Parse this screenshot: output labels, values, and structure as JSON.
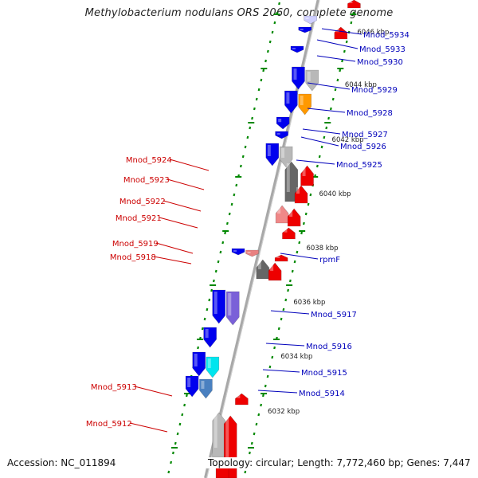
{
  "title": "Methylobacterium nodulans ORS 2060, complete genome",
  "footer": {
    "accession_text": "Accession: NC_011894",
    "topology_text": "Topology: circular; Length: 7,772,460 bp; Genes: 7,447"
  },
  "colors": {
    "forward_strand": "#ee0000",
    "reverse_strand": "#0000ee",
    "backbone": "#a8a8a8",
    "tick": "#008800",
    "forward_label": "#cc0000",
    "reverse_label": "#0000bb"
  },
  "scale_labels": [
    "6046 kbp",
    "6044 kbp",
    "6042 kbp",
    "6040 kbp",
    "6038 kbp",
    "6036 kbp",
    "6034 kbp",
    "6032 kbp"
  ],
  "genes": [
    {
      "name": "Mnod_5934",
      "strand": "reverse"
    },
    {
      "name": "Mnod_5933",
      "strand": "reverse"
    },
    {
      "name": "Mnod_5930",
      "strand": "reverse"
    },
    {
      "name": "Mnod_5929",
      "strand": "reverse"
    },
    {
      "name": "Mnod_5928",
      "strand": "reverse"
    },
    {
      "name": "Mnod_5927",
      "strand": "reverse"
    },
    {
      "name": "Mnod_5926",
      "strand": "reverse"
    },
    {
      "name": "Mnod_5925",
      "strand": "reverse"
    },
    {
      "name": "rpmF",
      "strand": "reverse"
    },
    {
      "name": "Mnod_5917",
      "strand": "reverse"
    },
    {
      "name": "Mnod_5916",
      "strand": "reverse"
    },
    {
      "name": "Mnod_5915",
      "strand": "reverse"
    },
    {
      "name": "Mnod_5914",
      "strand": "reverse"
    },
    {
      "name": "Mnod_5924",
      "strand": "forward"
    },
    {
      "name": "Mnod_5923",
      "strand": "forward"
    },
    {
      "name": "Mnod_5922",
      "strand": "forward"
    },
    {
      "name": "Mnod_5921",
      "strand": "forward"
    },
    {
      "name": "Mnod_5919",
      "strand": "forward"
    },
    {
      "name": "Mnod_5918",
      "strand": "forward"
    },
    {
      "name": "Mnod_5913",
      "strand": "forward"
    },
    {
      "name": "Mnod_5912",
      "strand": "forward"
    }
  ]
}
